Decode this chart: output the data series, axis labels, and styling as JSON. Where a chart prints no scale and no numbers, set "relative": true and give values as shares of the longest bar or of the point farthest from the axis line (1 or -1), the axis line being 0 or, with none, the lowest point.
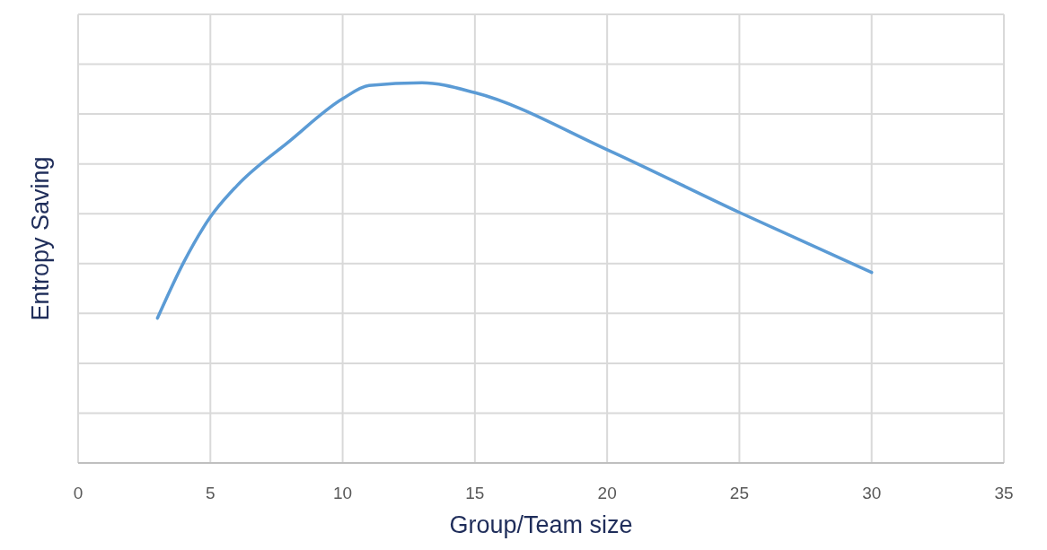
{
  "chart_data": {
    "type": "line",
    "xlabel": "Group/Team size",
    "ylabel": "Entropy Saving",
    "relative": true,
    "xlim": [
      0,
      35
    ],
    "xticks": [
      0,
      5,
      10,
      15,
      20,
      25,
      30,
      35
    ],
    "grid": true,
    "marker": "none",
    "line_style": "solid",
    "tick_labels": "x",
    "series": [
      {
        "color": "#5b9bd5",
        "x": [
          3,
          4,
          5,
          6,
          8,
          10,
          11,
          13,
          15,
          20,
          25,
          30
        ],
        "values": [
          0.381,
          0.529,
          0.647,
          0.729,
          0.847,
          0.958,
          0.993,
          1,
          0.974,
          0.824,
          0.659,
          0.501
        ]
      }
    ]
  }
}
